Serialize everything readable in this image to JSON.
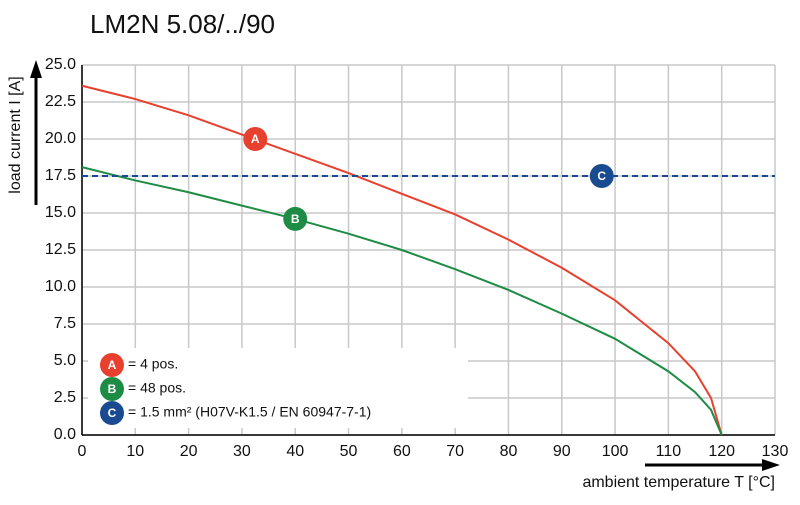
{
  "chart_data": {
    "type": "line",
    "title": "LM2N 5.08/../90",
    "xlabel": "ambient temperature T [°C]",
    "ylabel": "load current I [A]",
    "xlim": [
      0,
      130
    ],
    "xticks": [
      0,
      10,
      20,
      30,
      40,
      50,
      60,
      70,
      80,
      90,
      100,
      110,
      120,
      130
    ],
    "ylim": [
      0,
      25
    ],
    "yticks": [
      {
        "value": 0,
        "label": "0.0"
      },
      {
        "value": 2.5,
        "label": "2.5"
      },
      {
        "value": 5,
        "label": "5.0"
      },
      {
        "value": 7.5,
        "label": "7.5"
      },
      {
        "value": 10,
        "label": "10.0"
      },
      {
        "value": 12.5,
        "label": "12.5"
      },
      {
        "value": 15,
        "label": "15.0"
      },
      {
        "value": 17.5,
        "label": "17.5"
      },
      {
        "value": 20,
        "label": "20.0"
      },
      {
        "value": 22.5,
        "label": "22.5"
      },
      {
        "value": 25,
        "label": "25.0"
      }
    ],
    "grid": true,
    "series": [
      {
        "name": "A",
        "description": "= 4 pos.",
        "color": "#e8402e",
        "x": [
          0,
          10,
          20,
          30,
          40,
          50,
          60,
          70,
          80,
          90,
          100,
          110,
          115,
          118,
          120
        ],
        "values": [
          23.6,
          22.7,
          21.6,
          20.3,
          19.0,
          17.7,
          16.3,
          14.9,
          13.2,
          11.3,
          9.1,
          6.2,
          4.3,
          2.5,
          0
        ]
      },
      {
        "name": "B",
        "description": "= 48 pos.",
        "color": "#1e8c45",
        "x": [
          0,
          10,
          20,
          30,
          40,
          50,
          60,
          70,
          80,
          90,
          100,
          110,
          115,
          118,
          120
        ],
        "values": [
          18.1,
          17.2,
          16.4,
          15.5,
          14.6,
          13.6,
          12.5,
          11.2,
          9.8,
          8.2,
          6.5,
          4.3,
          2.9,
          1.7,
          0
        ]
      },
      {
        "name": "C",
        "description": "= 1.5 mm² (H07V-K1.5 / EN 60947-7-1)",
        "color": "#1a4a8f",
        "dashed": true,
        "x": [
          0,
          130
        ],
        "values": [
          17.5,
          17.5
        ]
      }
    ]
  }
}
